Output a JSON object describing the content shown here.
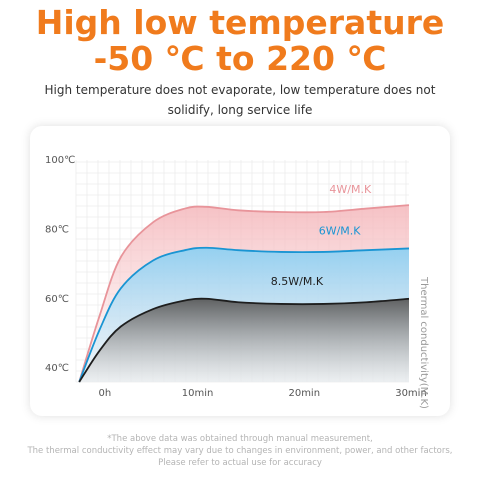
{
  "header": {
    "title_line1": "High low temperature",
    "title_line2": "-50 ℃ to 220 ℃",
    "subtitle_line1": "High temperature does not evaporate, low temperature does not",
    "subtitle_line2": "solidify, long service life"
  },
  "footer": {
    "note_line1": "*The above data was obtained through manual measurement,",
    "note_line2": "The thermal conductivity effect may vary due to changes in environment, power, and other factors,",
    "note_line3": "Please refer to actual use for accuracy"
  },
  "chart_data": {
    "type": "area",
    "title": "",
    "xlabel": "",
    "ylabel": "Thermal conductivity(M.K)",
    "x_ticks": [
      {
        "value": 0,
        "label": "0h"
      },
      {
        "value": 10,
        "label": "10min"
      },
      {
        "value": 20,
        "label": "20min"
      },
      {
        "value": 30,
        "label": "30min"
      }
    ],
    "y_ticks": [
      {
        "value": 40,
        "label": "40℃"
      },
      {
        "value": 60,
        "label": "60℃"
      },
      {
        "value": 80,
        "label": "80℃"
      },
      {
        "value": 100,
        "label": "100℃"
      }
    ],
    "xlim": [
      -1.2,
      30
    ],
    "ylim": [
      36,
      100
    ],
    "grid": true,
    "series": [
      {
        "name": "4W/M.K",
        "color": "#e8949a",
        "points": [
          [
            -0.9,
            36
          ],
          [
            1,
            55
          ],
          [
            3,
            72
          ],
          [
            6,
            82
          ],
          [
            9,
            86
          ],
          [
            11,
            86.5
          ],
          [
            14,
            85.5
          ],
          [
            18,
            85
          ],
          [
            22,
            85
          ],
          [
            26,
            86
          ],
          [
            30,
            87
          ]
        ]
      },
      {
        "name": "6W/M.K",
        "color": "#1a95d3",
        "points": [
          [
            -0.9,
            36
          ],
          [
            1,
            51
          ],
          [
            3,
            63
          ],
          [
            6,
            71
          ],
          [
            9,
            74
          ],
          [
            11,
            74.7
          ],
          [
            14,
            74
          ],
          [
            18,
            73.5
          ],
          [
            22,
            73.5
          ],
          [
            26,
            74
          ],
          [
            30,
            74.5
          ]
        ]
      },
      {
        "name": "8.5W/M.K",
        "color": "#1e1e1e",
        "points": [
          [
            -0.9,
            36
          ],
          [
            1,
            45
          ],
          [
            3,
            52
          ],
          [
            6,
            57
          ],
          [
            9,
            59.5
          ],
          [
            11,
            60
          ],
          [
            14,
            59
          ],
          [
            18,
            58.5
          ],
          [
            22,
            58.5
          ],
          [
            26,
            59
          ],
          [
            30,
            60
          ]
        ]
      }
    ]
  }
}
